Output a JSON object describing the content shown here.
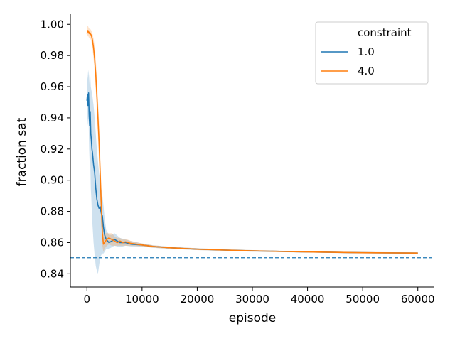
{
  "chart_data": {
    "type": "line",
    "xlabel": "episode",
    "ylabel": "fraction sat",
    "xlim": [
      -3000,
      63000
    ],
    "ylim": [
      0.8315,
      1.0065
    ],
    "xticks": [
      0,
      10000,
      20000,
      30000,
      40000,
      50000,
      60000
    ],
    "xtick_labels": [
      "0",
      "10000",
      "20000",
      "30000",
      "40000",
      "50000",
      "60000"
    ],
    "yticks": [
      0.84,
      0.86,
      0.88,
      0.9,
      0.92,
      0.94,
      0.96,
      0.98,
      1.0
    ],
    "ytick_labels": [
      "0.84",
      "0.86",
      "0.88",
      "0.90",
      "0.92",
      "0.94",
      "0.96",
      "0.98",
      "1.00"
    ],
    "grid": false,
    "legend": {
      "title": "constraint",
      "placement": "top-right",
      "entries": [
        "1.0",
        "4.0"
      ]
    },
    "reference_line": {
      "y": 0.8503,
      "style": "dashed",
      "color": "#1f77b4"
    },
    "series": [
      {
        "name": "1.0",
        "color": "#1f77b4",
        "x": [
          0,
          100,
          200,
          300,
          400,
          500,
          600,
          700,
          800,
          900,
          1000,
          1200,
          1400,
          1600,
          1800,
          2000,
          2200,
          2400,
          2600,
          2800,
          3000,
          3200,
          3500,
          4000,
          4500,
          5000,
          6000,
          7000,
          8000,
          10000,
          12000,
          15000,
          20000,
          25000,
          30000,
          40000,
          50000,
          60000
        ],
        "values": [
          0.951,
          0.955,
          0.948,
          0.956,
          0.942,
          0.935,
          0.944,
          0.93,
          0.926,
          0.92,
          0.918,
          0.91,
          0.905,
          0.895,
          0.888,
          0.884,
          0.882,
          0.883,
          0.879,
          0.877,
          0.87,
          0.865,
          0.862,
          0.86,
          0.861,
          0.862,
          0.86,
          0.86,
          0.859,
          0.8585,
          0.8575,
          0.8567,
          0.8558,
          0.8552,
          0.8547,
          0.854,
          0.8535,
          0.8533
        ],
        "band_low": [
          0.94,
          0.94,
          0.935,
          0.94,
          0.92,
          0.91,
          0.915,
          0.895,
          0.888,
          0.878,
          0.872,
          0.86,
          0.852,
          0.845,
          0.842,
          0.84,
          0.845,
          0.85,
          0.852,
          0.853,
          0.853,
          0.854,
          0.856,
          0.856,
          0.857,
          0.858,
          0.857,
          0.858,
          0.8575,
          0.8575,
          0.8567,
          0.856,
          0.8552,
          0.8547,
          0.8542,
          0.8536,
          0.8531,
          0.8529
        ],
        "band_high": [
          0.962,
          0.97,
          0.965,
          0.971,
          0.966,
          0.96,
          0.968,
          0.96,
          0.958,
          0.956,
          0.954,
          0.948,
          0.94,
          0.93,
          0.92,
          0.912,
          0.905,
          0.9,
          0.895,
          0.89,
          0.884,
          0.876,
          0.868,
          0.865,
          0.865,
          0.866,
          0.863,
          0.862,
          0.861,
          0.8595,
          0.8583,
          0.8574,
          0.8564,
          0.8557,
          0.8552,
          0.8544,
          0.8539,
          0.8537
        ]
      },
      {
        "name": "4.0",
        "color": "#ff7f0e",
        "x": [
          0,
          100,
          200,
          300,
          400,
          500,
          600,
          800,
          1000,
          1200,
          1400,
          1600,
          1800,
          2000,
          2200,
          2400,
          2600,
          2800,
          3000,
          3200,
          3400,
          3600,
          4000,
          4500,
          5000,
          5500,
          6000,
          6500,
          7000,
          8000,
          10000,
          12000,
          15000,
          20000,
          25000,
          30000,
          40000,
          50000,
          60000
        ],
        "values": [
          0.994,
          0.995,
          0.996,
          0.995,
          0.994,
          0.995,
          0.994,
          0.993,
          0.99,
          0.985,
          0.978,
          0.968,
          0.955,
          0.94,
          0.925,
          0.905,
          0.885,
          0.866,
          0.859,
          0.86,
          0.861,
          0.862,
          0.863,
          0.862,
          0.861,
          0.86,
          0.861,
          0.86,
          0.8605,
          0.8595,
          0.8585,
          0.8575,
          0.8567,
          0.8558,
          0.8552,
          0.8547,
          0.854,
          0.8535,
          0.8533
        ],
        "band_low": [
          0.99,
          0.992,
          0.993,
          0.992,
          0.991,
          0.992,
          0.991,
          0.989,
          0.985,
          0.978,
          0.97,
          0.958,
          0.944,
          0.928,
          0.912,
          0.892,
          0.872,
          0.858,
          0.854,
          0.856,
          0.857,
          0.858,
          0.859,
          0.858,
          0.858,
          0.858,
          0.858,
          0.858,
          0.858,
          0.858,
          0.8575,
          0.8567,
          0.856,
          0.8552,
          0.8547,
          0.8542,
          0.8536,
          0.8531,
          0.8529
        ],
        "band_high": [
          0.998,
          0.999,
          0.999,
          0.998,
          0.997,
          0.998,
          0.997,
          0.996,
          0.994,
          0.991,
          0.986,
          0.978,
          0.966,
          0.952,
          0.938,
          0.918,
          0.898,
          0.878,
          0.866,
          0.865,
          0.866,
          0.866,
          0.866,
          0.866,
          0.864,
          0.863,
          0.863,
          0.862,
          0.8625,
          0.861,
          0.8595,
          0.8583,
          0.8574,
          0.8564,
          0.8557,
          0.8552,
          0.8544,
          0.8539,
          0.8537
        ]
      }
    ]
  }
}
